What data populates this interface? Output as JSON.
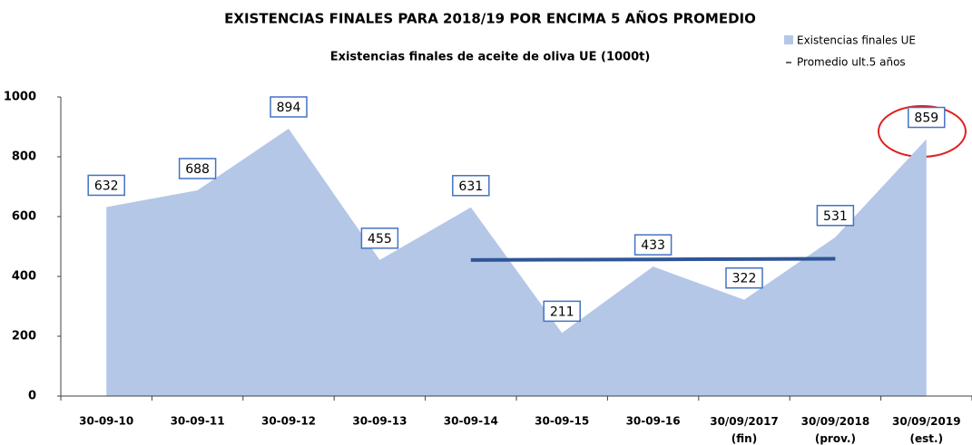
{
  "chart_data": {
    "type": "area",
    "title": "EXISTENCIAS FINALES PARA 2018/19 POR ENCIMA 5 AÑOS PROMEDIO",
    "subtitle": "Existencias finales de aceite de oliva UE (1000t)",
    "categories": [
      "30-09-10",
      "30-09-11",
      "30-09-12",
      "30-09-13",
      "30-09-14",
      "30-09-15",
      "30-09-16",
      "30/09/2017 (fin)",
      "30/09/2018 (prov.)",
      "30/09/2019 (est.)"
    ],
    "series": [
      {
        "name": "Existencias finales UE",
        "color": "#b4c7e7",
        "values": [
          632,
          688,
          894,
          455,
          631,
          211,
          433,
          322,
          531,
          859
        ]
      },
      {
        "name": "Promedio ult.5 años",
        "color": "#2f5597",
        "type": "line",
        "values": [
          null,
          null,
          null,
          null,
          455,
          456,
          457,
          458,
          459,
          null
        ]
      }
    ],
    "ylim": [
      0,
      1000
    ],
    "yticks": [
      0,
      200,
      400,
      600,
      800,
      1000
    ],
    "grid": false
  }
}
